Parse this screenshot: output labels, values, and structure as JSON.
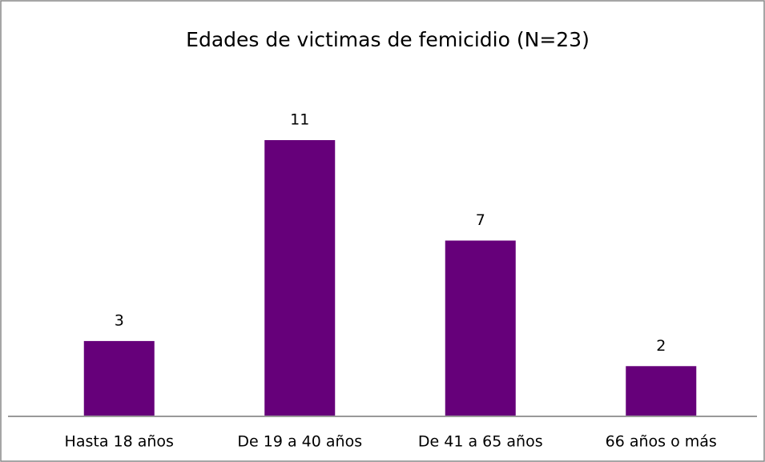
{
  "chart_data": {
    "type": "bar",
    "title": "Edades de victimas de femicidio (N=23)",
    "categories": [
      "Hasta 18 años",
      "De 19 a 40 años",
      "De 41 a 65 años",
      "66 años o más"
    ],
    "values": [
      3,
      11,
      7,
      2
    ],
    "color": "#66007a"
  }
}
